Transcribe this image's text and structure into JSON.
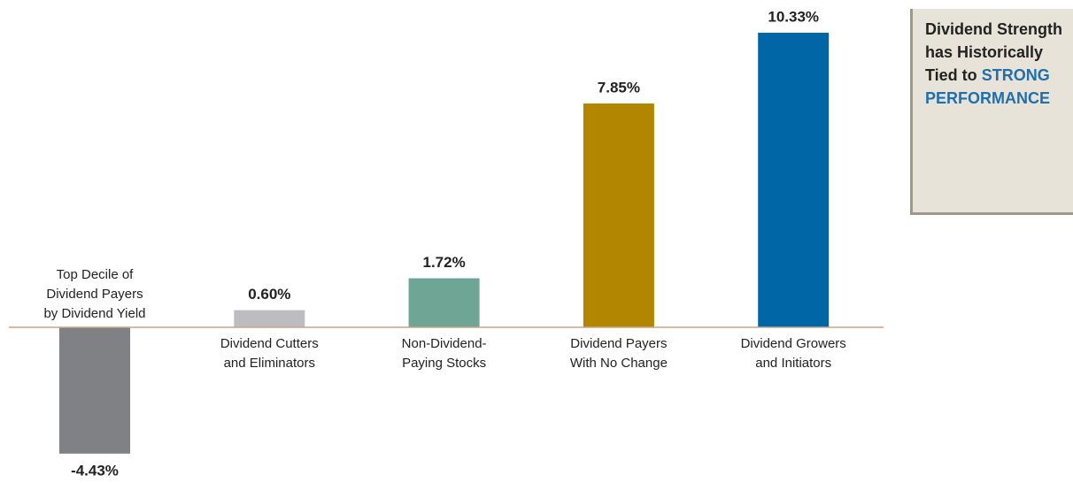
{
  "chart_data": {
    "type": "bar",
    "categories": [
      [
        "Top Decile of",
        "Dividend Payers",
        "by Dividend Yield"
      ],
      [
        "Dividend Cutters",
        "and Eliminators"
      ],
      [
        "Non-Dividend-",
        "Paying Stocks"
      ],
      [
        "Dividend Payers",
        "With No Change"
      ],
      [
        "Dividend Growers",
        "and Initiators"
      ]
    ],
    "values": [
      -4.43,
      0.6,
      1.72,
      7.85,
      10.33
    ],
    "value_labels": [
      "-4.43%",
      "0.60%",
      "1.72%",
      "7.85%",
      "10.33%"
    ],
    "colors": [
      "#808184",
      "#bdbdc1",
      "#6fa594",
      "#b38600",
      "#0066a6"
    ],
    "annotation": {
      "text": "Dividend Strength has Historically Tied to",
      "highlight": "STRONG PERFORMANCE"
    }
  }
}
